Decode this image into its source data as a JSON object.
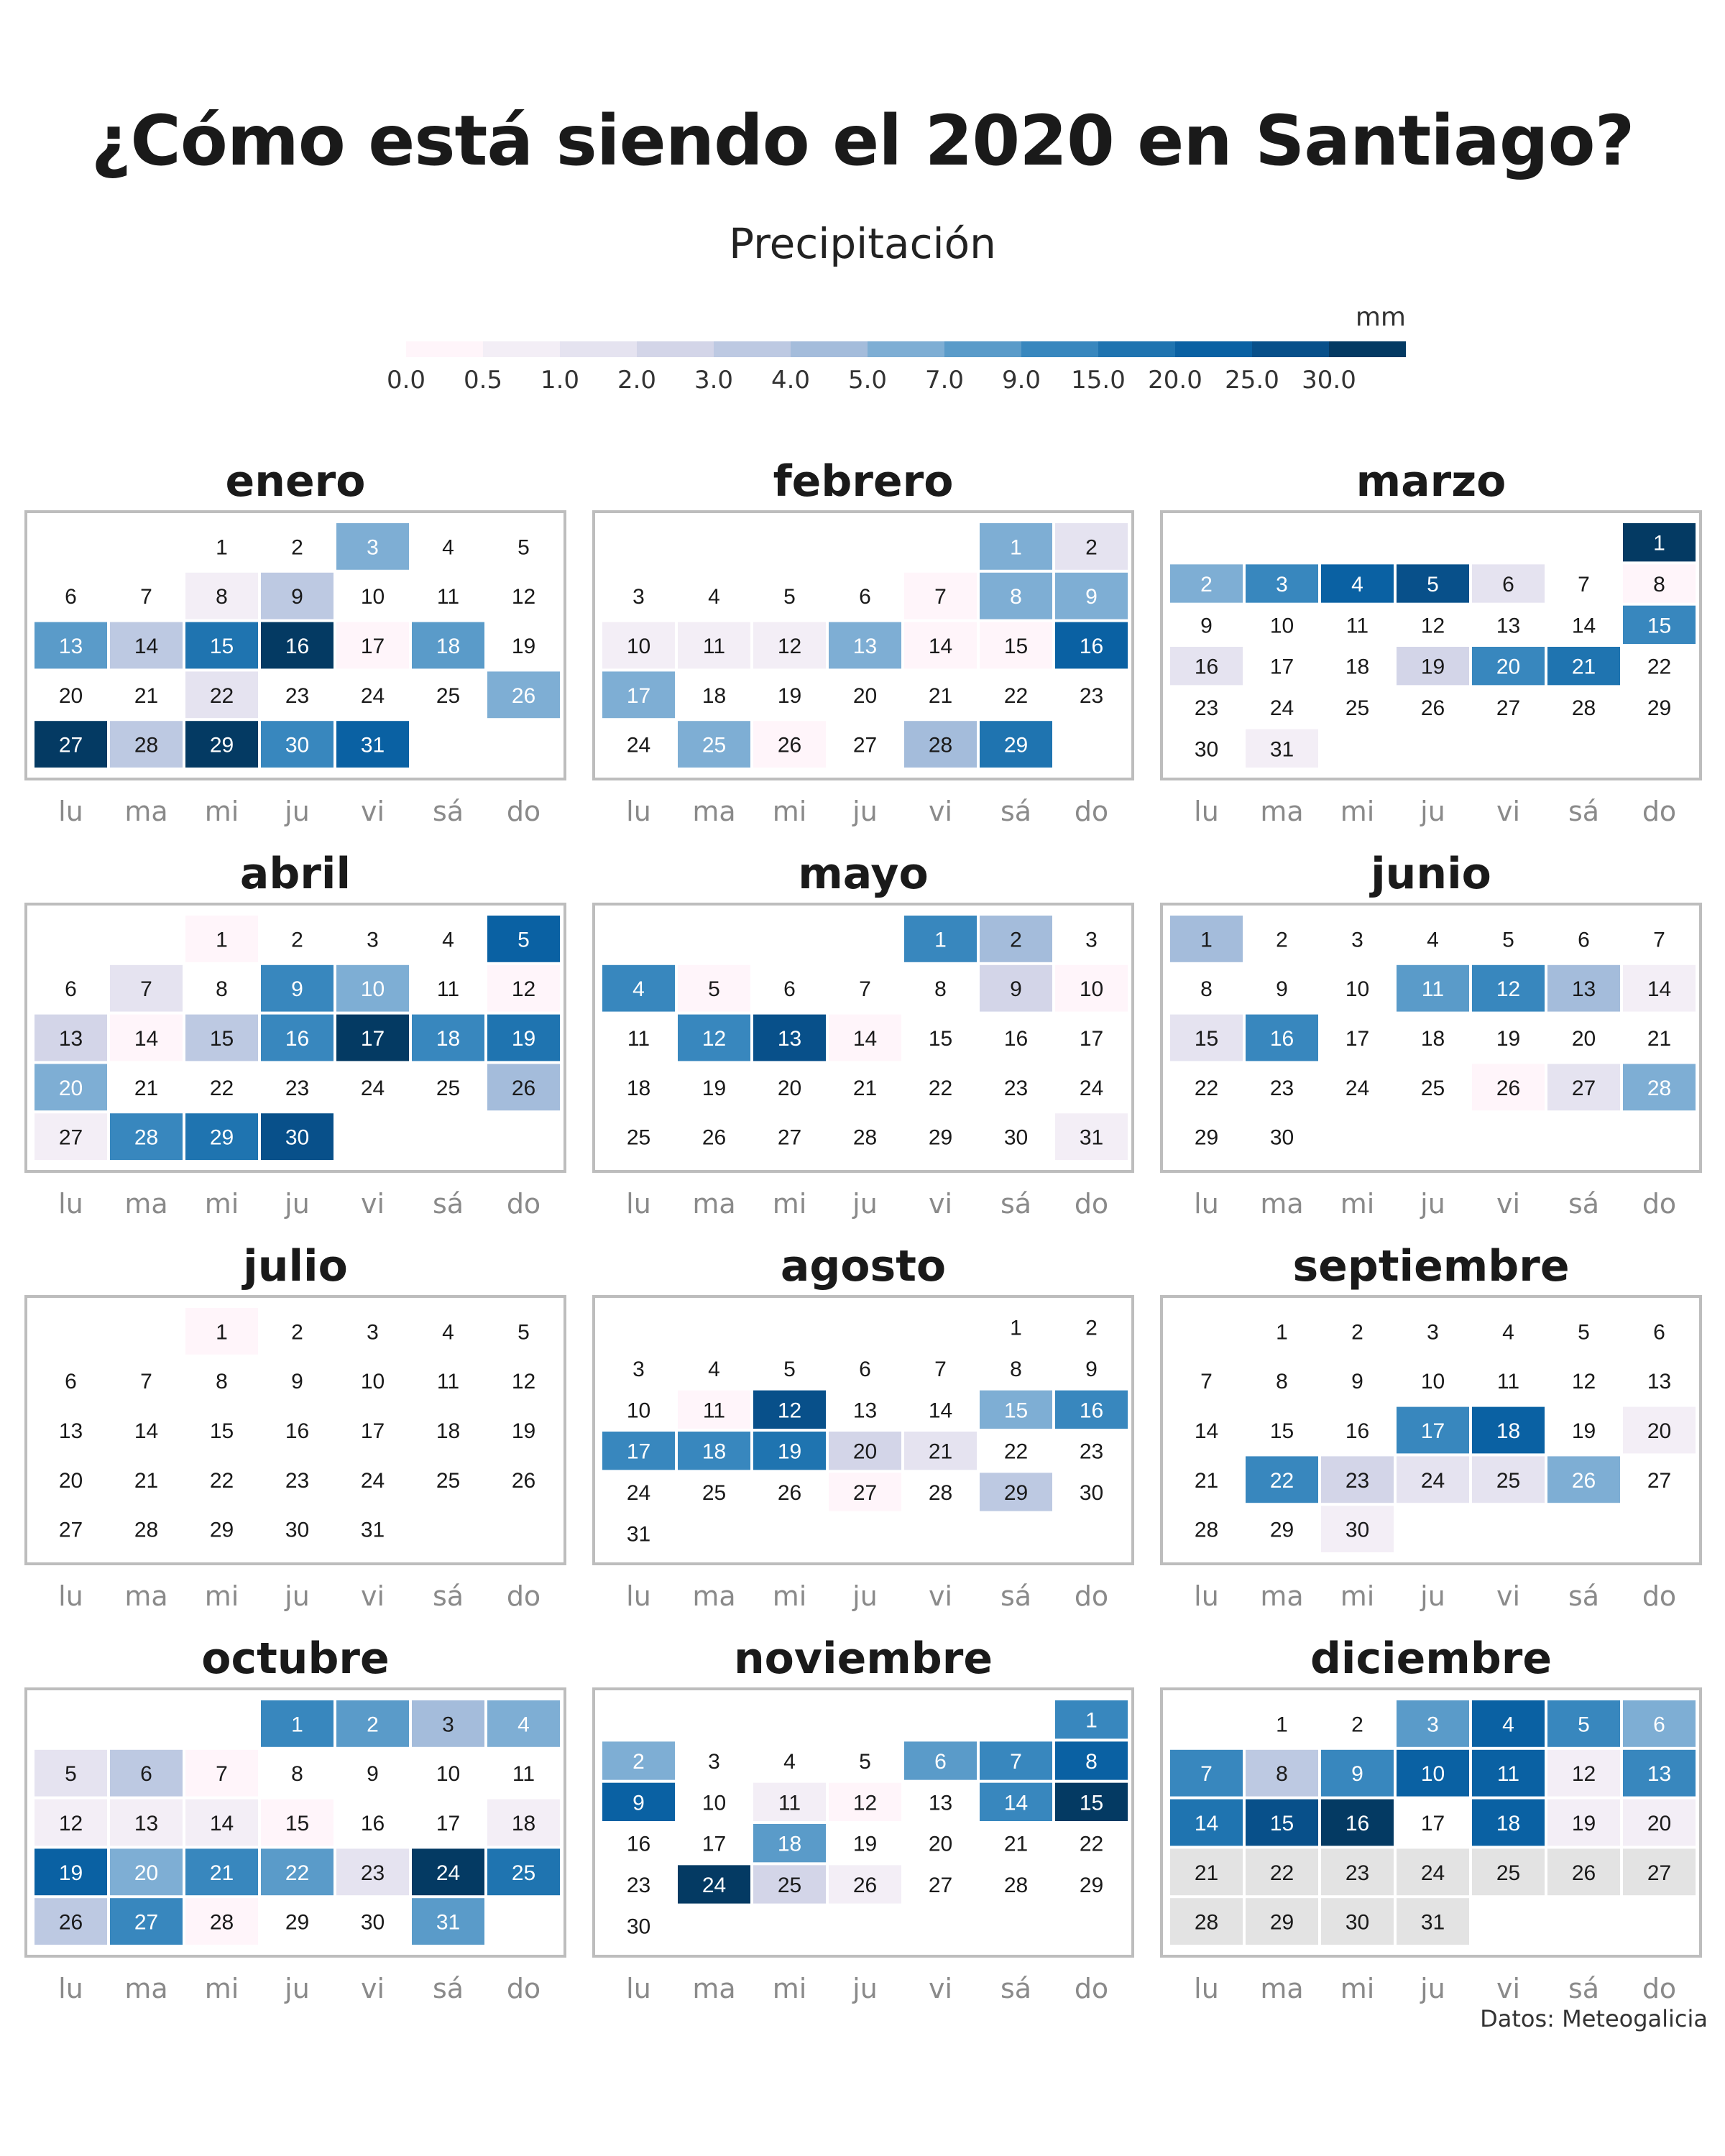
{
  "title": "¿Cómo está siendo el 2020 en Santiago?",
  "subtitle": "Precipitación",
  "source": "Datos: Meteogalicia",
  "chart_data": {
    "type": "heatmap",
    "year": 2020,
    "title": "¿Cómo está siendo el 2020 en Santiago?",
    "subtitle": "Precipitación",
    "legend": {
      "unit": "mm",
      "ticks": [
        "0.0",
        "0.5",
        "1.0",
        "2.0",
        "3.0",
        "4.0",
        "5.0",
        "7.0",
        "9.0",
        "15.0",
        "20.0",
        "25.0",
        "30.0"
      ],
      "colors": [
        "#fff5fa",
        "#f3eef6",
        "#e5e3f0",
        "#d3d5e8",
        "#bdc9e2",
        "#a4bcdb",
        "#7eaed4",
        "#5a9bc9",
        "#3887be",
        "#1f74b0",
        "#0a61a3",
        "#08508a",
        "#043a63"
      ],
      "no_data_color": "#e3e3e3"
    },
    "weekday_labels": [
      "lu",
      "ma",
      "mi",
      "ju",
      "vi",
      "sá",
      "do"
    ],
    "months": [
      {
        "name": "enero",
        "days": 31,
        "first_weekday": 2,
        "precip_class": {
          "3": 6,
          "8": 1,
          "9": 4,
          "13": 7,
          "14": 4,
          "15": 9,
          "16": 12,
          "17": 0,
          "18": 7,
          "22": 2,
          "26": 6,
          "27": 12,
          "28": 4,
          "29": 12,
          "30": 8,
          "31": 10
        }
      },
      {
        "name": "febrero",
        "days": 29,
        "first_weekday": 5,
        "precip_class": {
          "1": 6,
          "2": 2,
          "7": 0,
          "8": 6,
          "9": 6,
          "10": 1,
          "11": 1,
          "12": 1,
          "13": 6,
          "14": 0,
          "15": 0,
          "16": 10,
          "17": 6,
          "25": 6,
          "26": 0,
          "28": 5,
          "29": 9
        }
      },
      {
        "name": "marzo",
        "days": 31,
        "first_weekday": 6,
        "precip_class": {
          "1": 12,
          "2": 6,
          "3": 8,
          "4": 10,
          "5": 11,
          "6": 2,
          "8": 0,
          "15": 8,
          "16": 2,
          "19": 3,
          "20": 8,
          "21": 9,
          "31": 1
        }
      },
      {
        "name": "abril",
        "days": 30,
        "first_weekday": 2,
        "precip_class": {
          "1": 0,
          "5": 10,
          "7": 2,
          "9": 8,
          "10": 6,
          "12": 0,
          "13": 3,
          "14": 0,
          "15": 4,
          "16": 8,
          "17": 12,
          "18": 8,
          "19": 9,
          "20": 6,
          "26": 5,
          "27": 1,
          "28": 8,
          "29": 9,
          "30": 11
        }
      },
      {
        "name": "mayo",
        "days": 31,
        "first_weekday": 4,
        "precip_class": {
          "1": 8,
          "2": 5,
          "4": 8,
          "5": 0,
          "9": 3,
          "10": 0,
          "12": 8,
          "13": 11,
          "14": 0,
          "31": 1
        }
      },
      {
        "name": "junio",
        "days": 30,
        "first_weekday": 0,
        "precip_class": {
          "1": 5,
          "11": 7,
          "12": 8,
          "13": 5,
          "14": 1,
          "15": 2,
          "16": 8,
          "26": 0,
          "27": 2,
          "28": 6
        }
      },
      {
        "name": "julio",
        "days": 31,
        "first_weekday": 2,
        "precip_class": {
          "1": 0
        }
      },
      {
        "name": "agosto",
        "days": 31,
        "first_weekday": 5,
        "precip_class": {
          "11": 0,
          "12": 11,
          "15": 6,
          "16": 8,
          "17": 8,
          "18": 8,
          "19": 9,
          "20": 3,
          "21": 2,
          "27": 0,
          "29": 4
        }
      },
      {
        "name": "septiembre",
        "days": 30,
        "first_weekday": 1,
        "precip_class": {
          "17": 8,
          "18": 10,
          "20": 1,
          "22": 8,
          "23": 3,
          "24": 2,
          "25": 2,
          "26": 6,
          "30": 1
        }
      },
      {
        "name": "octubre",
        "days": 31,
        "first_weekday": 3,
        "precip_class": {
          "1": 8,
          "2": 7,
          "3": 5,
          "4": 6,
          "5": 2,
          "6": 4,
          "7": 0,
          "12": 1,
          "13": 1,
          "14": 1,
          "15": 0,
          "18": 1,
          "19": 10,
          "20": 6,
          "21": 8,
          "22": 7,
          "23": 2,
          "24": 12,
          "25": 9,
          "26": 4,
          "27": 8,
          "28": 0,
          "31": 7
        }
      },
      {
        "name": "noviembre",
        "days": 30,
        "first_weekday": 6,
        "precip_class": {
          "1": 8,
          "2": 6,
          "6": 7,
          "7": 8,
          "8": 10,
          "9": 10,
          "11": 1,
          "12": 0,
          "14": 8,
          "15": 12,
          "18": 7,
          "24": 12,
          "25": 3,
          "26": 1
        }
      },
      {
        "name": "diciembre",
        "days": 31,
        "first_weekday": 1,
        "last_day_with_data": 20,
        "precip_class": {
          "3": 7,
          "4": 10,
          "5": 8,
          "6": 6,
          "7": 8,
          "8": 4,
          "9": 8,
          "10": 10,
          "11": 10,
          "12": 1,
          "13": 8,
          "14": 9,
          "15": 11,
          "16": 12,
          "18": 10,
          "19": 1,
          "20": 1
        }
      }
    ]
  }
}
